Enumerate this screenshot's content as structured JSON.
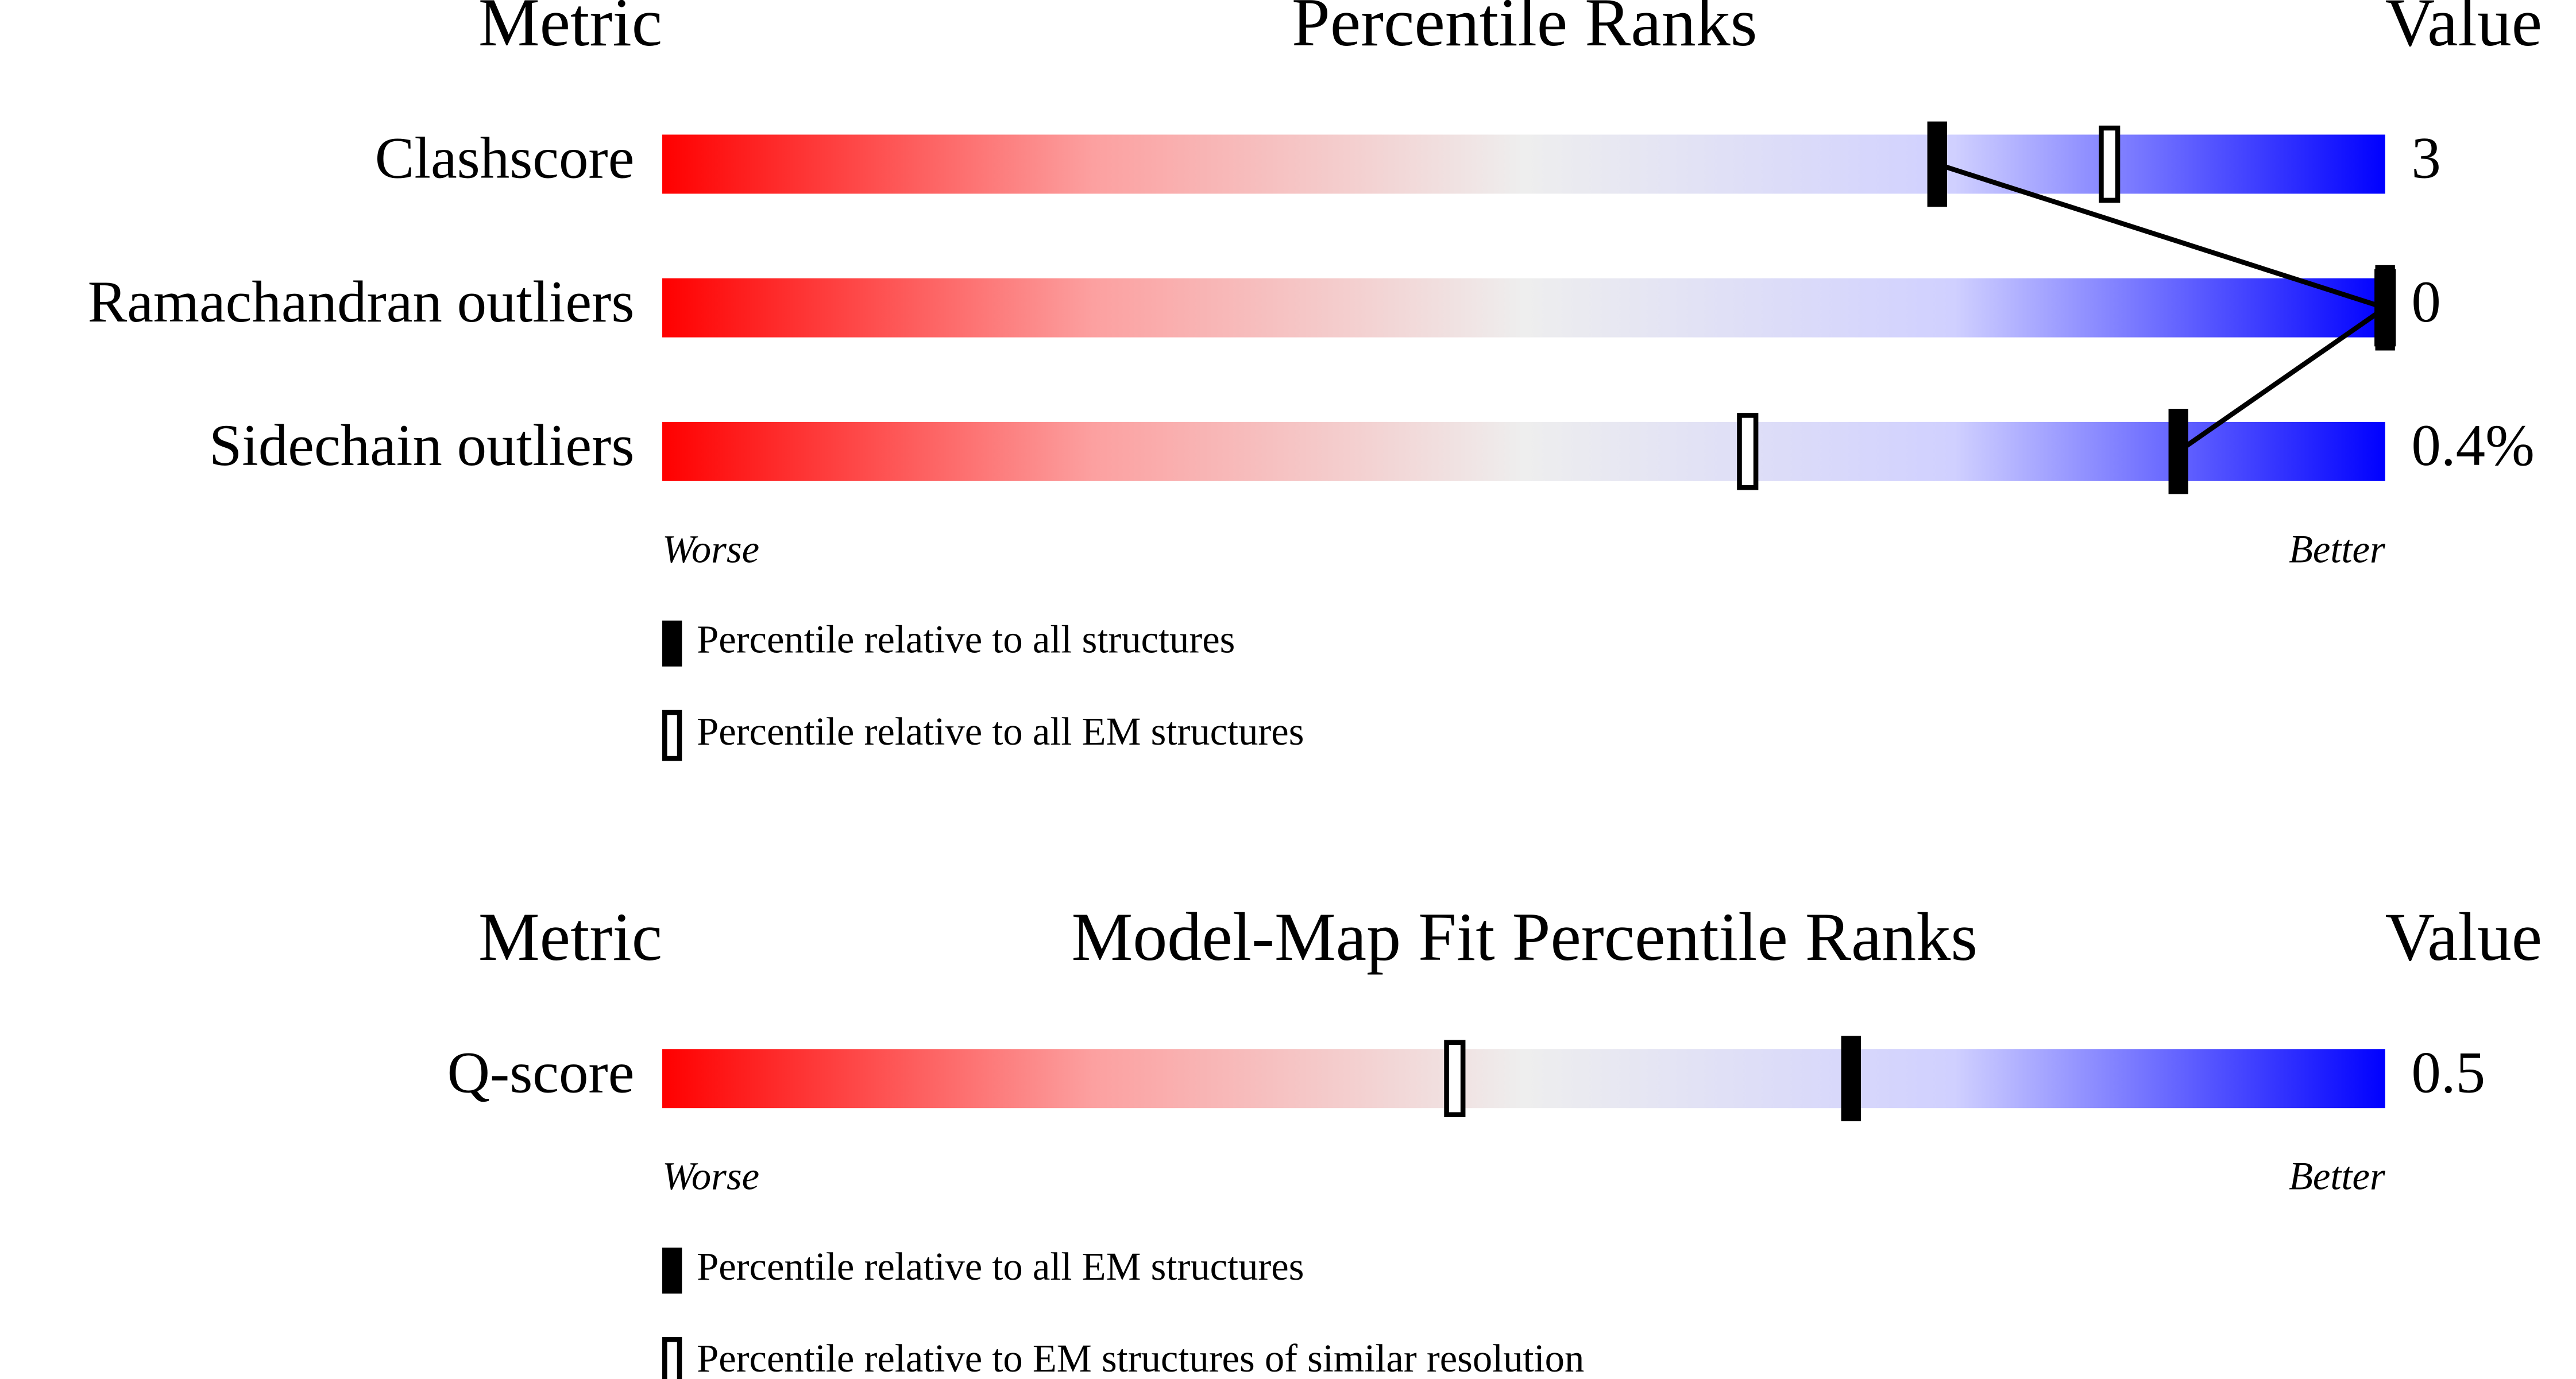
{
  "chart_data": [
    {
      "type": "slider",
      "header_metric": "Metric",
      "title": "Percentile Ranks",
      "header_value": "Value",
      "categories": [
        "Clashscore",
        "Ramachandran outliers",
        "Sidechain outliers"
      ],
      "value_labels": [
        "3",
        "0",
        "0.4%"
      ],
      "series": [
        {
          "name": "Percentile relative to all structures",
          "style": "filled",
          "color": "#000000",
          "values": [
            74,
            100,
            88
          ]
        },
        {
          "name": "Percentile relative to all EM structures",
          "style": "hollow",
          "color": "#000000",
          "values": [
            84,
            100,
            63
          ]
        }
      ],
      "connect_series": 0,
      "xlim": [
        0,
        100
      ],
      "worse_label": "Worse",
      "better_label": "Better"
    },
    {
      "type": "slider",
      "header_metric": "Metric",
      "title": "Model-Map Fit Percentile Ranks",
      "header_value": "Value",
      "categories": [
        "Q-score"
      ],
      "value_labels": [
        "0.5"
      ],
      "series": [
        {
          "name": "Percentile relative to all EM structures",
          "style": "filled",
          "color": "#000000",
          "values": [
            69
          ]
        },
        {
          "name": "Percentile relative to EM structures of similar resolution",
          "style": "hollow",
          "color": "#000000",
          "values": [
            46
          ]
        }
      ],
      "xlim": [
        0,
        100
      ],
      "worse_label": "Worse",
      "better_label": "Better"
    }
  ]
}
